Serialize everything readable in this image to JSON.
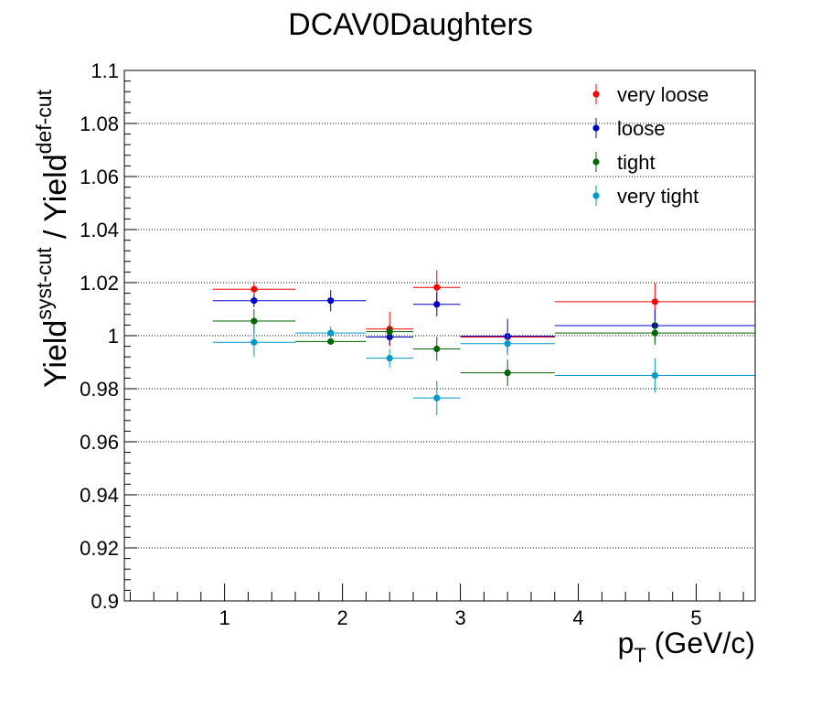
{
  "chart_data": {
    "type": "scatter",
    "title": "DCAV0Daughters",
    "xlabel": {
      "base": "p",
      "sub": "T",
      "rest": " (GeV/c)"
    },
    "ylabel": {
      "a": "Yield",
      "a_sup": "syst-cut",
      "mid": " / Yield",
      "b_sup": "def-cut"
    },
    "xlim": [
      0.15,
      5.5
    ],
    "ylim": [
      0.9,
      1.1
    ],
    "xticks": [
      1,
      2,
      3,
      4,
      5
    ],
    "xtick_labels": [
      "1",
      "2",
      "3",
      "4",
      "5"
    ],
    "yticks": [
      0.9,
      0.92,
      0.94,
      0.96,
      0.98,
      1.0,
      1.02,
      1.04,
      1.06,
      1.08,
      1.1
    ],
    "ytick_labels": [
      "0.9",
      "0.92",
      "0.94",
      "0.96",
      "0.98",
      "1",
      "1.02",
      "1.04",
      "1.06",
      "1.08",
      "1.1"
    ],
    "grid_y": true,
    "legend_position": "top-right",
    "series": [
      {
        "name": "very loose",
        "color": "#ff0000",
        "points": [
          {
            "x": 1.25,
            "xlo": 0.9,
            "xhi": 1.6,
            "y": 1.0175,
            "err": 0.003
          },
          {
            "x": 2.4,
            "xlo": 2.2,
            "xhi": 2.6,
            "y": 1.0025,
            "err": 0.0065
          },
          {
            "x": 2.8,
            "xlo": 2.6,
            "xhi": 3.0,
            "y": 1.0182,
            "err": 0.0065
          },
          {
            "x": 3.4,
            "xlo": 3.0,
            "xhi": 3.8,
            "y": 0.9995,
            "err": 0.0
          },
          {
            "x": 4.65,
            "xlo": 3.8,
            "xhi": 5.5,
            "y": 1.0128,
            "err": 0.007
          }
        ]
      },
      {
        "name": "loose",
        "color": "#0000cc",
        "points": [
          {
            "x": 1.25,
            "xlo": 0.9,
            "xhi": 1.6,
            "y": 1.0132,
            "err": 0.0025
          },
          {
            "x": 1.9,
            "xlo": 1.6,
            "xhi": 2.2,
            "y": 1.0132,
            "err": 0.004
          },
          {
            "x": 2.4,
            "xlo": 2.2,
            "xhi": 2.6,
            "y": 0.9995,
            "err": 0.003
          },
          {
            "x": 2.8,
            "xlo": 2.6,
            "xhi": 3.0,
            "y": 1.0118,
            "err": 0.0045
          },
          {
            "x": 3.4,
            "xlo": 3.0,
            "xhi": 3.8,
            "y": 0.9998,
            "err": 0.0065
          },
          {
            "x": 4.65,
            "xlo": 3.8,
            "xhi": 5.5,
            "y": 1.0038,
            "err": 0.006
          }
        ]
      },
      {
        "name": "tight",
        "color": "#006600",
        "points": [
          {
            "x": 1.25,
            "xlo": 0.9,
            "xhi": 1.6,
            "y": 1.0055,
            "err": 0.0045
          },
          {
            "x": 1.9,
            "xlo": 1.6,
            "xhi": 2.2,
            "y": 0.9978,
            "err": 0.0
          },
          {
            "x": 2.4,
            "xlo": 2.2,
            "xhi": 2.6,
            "y": 1.0015,
            "err": 0.0025
          },
          {
            "x": 2.8,
            "xlo": 2.6,
            "xhi": 3.0,
            "y": 0.995,
            "err": 0.0045
          },
          {
            "x": 3.4,
            "xlo": 3.0,
            "xhi": 3.8,
            "y": 0.986,
            "err": 0.005
          },
          {
            "x": 4.65,
            "xlo": 3.8,
            "xhi": 5.5,
            "y": 1.001,
            "err": 0.0045
          }
        ]
      },
      {
        "name": "very tight",
        "color": "#0099cc",
        "points": [
          {
            "x": 1.25,
            "xlo": 0.9,
            "xhi": 1.6,
            "y": 0.9975,
            "err": 0.0055
          },
          {
            "x": 1.9,
            "xlo": 1.6,
            "xhi": 2.2,
            "y": 1.001,
            "err": 0.0025
          },
          {
            "x": 2.4,
            "xlo": 2.2,
            "xhi": 2.6,
            "y": 0.9915,
            "err": 0.0035
          },
          {
            "x": 2.8,
            "xlo": 2.6,
            "xhi": 3.0,
            "y": 0.9765,
            "err": 0.0065
          },
          {
            "x": 3.4,
            "xlo": 3.0,
            "xhi": 3.8,
            "y": 0.997,
            "err": 0.0045
          },
          {
            "x": 4.65,
            "xlo": 3.8,
            "xhi": 5.5,
            "y": 0.985,
            "err": 0.0065
          }
        ]
      }
    ]
  }
}
